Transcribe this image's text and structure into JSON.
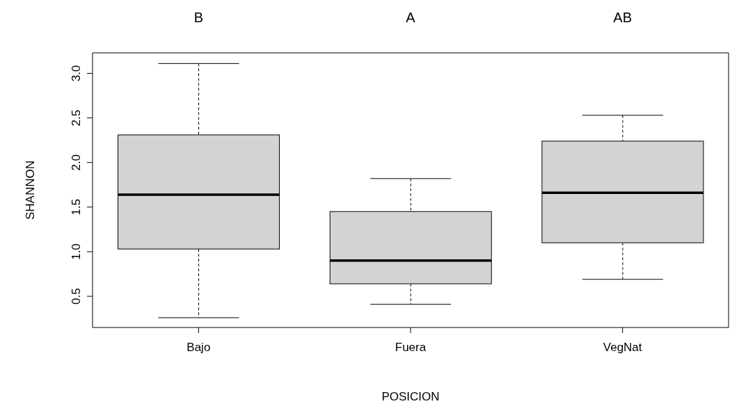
{
  "chart_data": {
    "type": "box",
    "xlabel": "POSICION",
    "ylabel": "SHANNON",
    "categories": [
      "Bajo",
      "Fuera",
      "VegNat"
    ],
    "color": "#d3d3d3",
    "boxes": [
      {
        "low": 0.26,
        "q1": 1.03,
        "median": 1.64,
        "q3": 2.31,
        "high": 3.11
      },
      {
        "low": 0.41,
        "q1": 0.64,
        "median": 0.9,
        "q3": 1.45,
        "high": 1.82
      },
      {
        "low": 0.69,
        "q1": 1.1,
        "median": 1.66,
        "q3": 2.24,
        "high": 2.53
      }
    ],
    "ylim": [
      0.15,
      3.23
    ],
    "yticks": [
      0.5,
      {
        "value": 1,
        "label": "1.0"
      },
      1.5,
      {
        "value": 2,
        "label": "2.0"
      },
      2.5,
      {
        "value": 3,
        "label": "3.0"
      }
    ],
    "annotations": [
      "B",
      "A",
      "AB"
    ],
    "grid": false,
    "legend": false
  }
}
